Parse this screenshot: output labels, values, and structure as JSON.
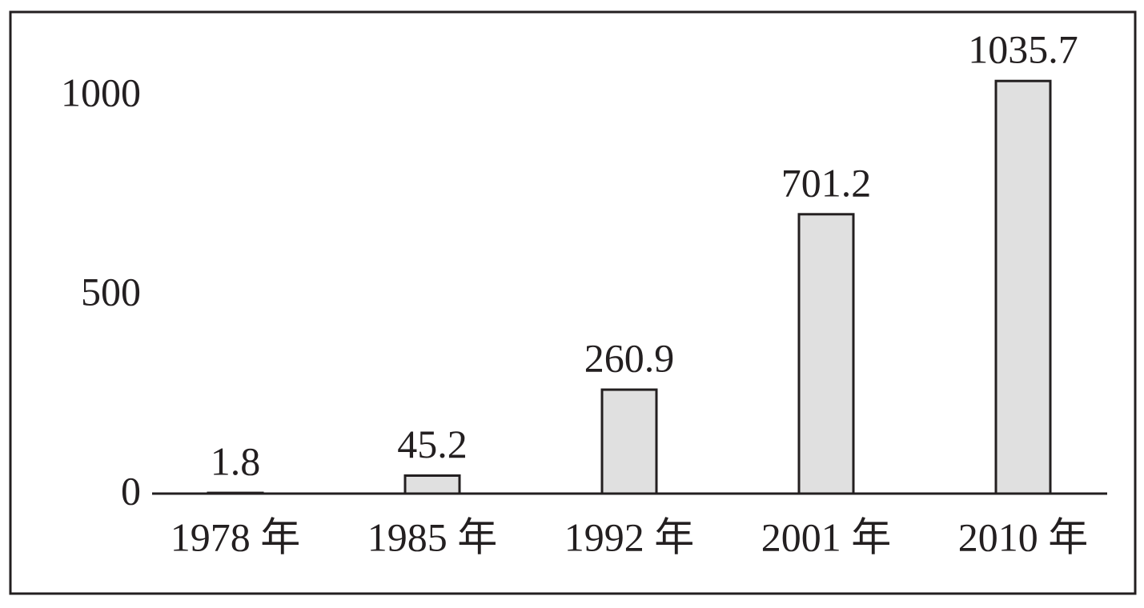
{
  "chart_data": {
    "type": "bar",
    "categories": [
      "1978 年",
      "1985 年",
      "1992 年",
      "2001 年",
      "2010 年"
    ],
    "values": [
      1.8,
      45.2,
      260.9,
      701.2,
      1035.7
    ],
    "color": "#e0e0e0",
    "ylim": [
      0,
      1000
    ],
    "yticks": [
      0,
      500,
      1000
    ],
    "grid": false
  }
}
